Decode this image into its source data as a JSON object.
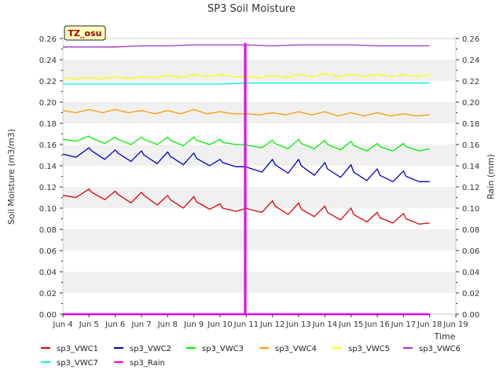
{
  "chart_data": {
    "type": "line",
    "title": "SP3 Soil Moisture",
    "xlabel": "Time",
    "ylabel": "Soil Moisture (m3/m3)",
    "y2label": "Rain (mm)",
    "site_label": "TZ_osu",
    "xlim": [
      4,
      19
    ],
    "xtick_values": [
      4,
      5,
      6,
      7,
      8,
      9,
      10,
      11,
      12,
      13,
      14,
      15,
      16,
      17,
      18,
      19
    ],
    "xtick_labels": [
      "Jun 4",
      "Jun 5",
      "Jun 6",
      "Jun 7",
      "Jun 8",
      "Jun 9",
      "Jun 10",
      "Jun 11",
      "Jun 12",
      "Jun 13",
      "Jun 14",
      "Jun 15",
      "Jun 16",
      "Jun 17",
      "Jun 18",
      "Jun 19"
    ],
    "ylim": [
      0,
      0.26
    ],
    "ytick_labels": [
      "0.00",
      "0.02",
      "0.04",
      "0.06",
      "0.08",
      "0.10",
      "0.12",
      "0.14",
      "0.16",
      "0.18",
      "0.20",
      "0.22",
      "0.24",
      "0.26"
    ],
    "y2lim": [
      0,
      0.26
    ],
    "y2tick_labels": [
      "0.00",
      "0.02",
      "0.04",
      "0.06",
      "0.08",
      "0.10",
      "0.12",
      "0.14",
      "0.16",
      "0.18",
      "0.20",
      "0.22",
      "0.24",
      "0.26"
    ],
    "grid": "horizontal bands",
    "legend_position": "bottom",
    "series": [
      {
        "name": "sp3_VWC1",
        "color": "#dd0000",
        "x": [
          4.0,
          4.5,
          5.0,
          5.1,
          5.6,
          6.0,
          6.1,
          6.6,
          7.0,
          7.1,
          7.6,
          8.0,
          8.1,
          8.6,
          9.0,
          9.1,
          9.6,
          10.0,
          10.1,
          10.6,
          11.0,
          11.1,
          11.6,
          12.0,
          12.1,
          12.6,
          13.0,
          13.1,
          13.6,
          14.0,
          14.1,
          14.6,
          15.0,
          15.1,
          15.6,
          16.0,
          16.1,
          16.6,
          17.0,
          17.1,
          17.6,
          18.0
        ],
        "values": [
          0.112,
          0.11,
          0.118,
          0.115,
          0.108,
          0.116,
          0.113,
          0.105,
          0.115,
          0.112,
          0.103,
          0.112,
          0.108,
          0.1,
          0.111,
          0.106,
          0.099,
          0.104,
          0.1,
          0.097,
          0.1,
          0.099,
          0.096,
          0.107,
          0.102,
          0.094,
          0.105,
          0.099,
          0.092,
          0.102,
          0.096,
          0.089,
          0.1,
          0.094,
          0.087,
          0.096,
          0.091,
          0.086,
          0.095,
          0.09,
          0.085,
          0.086
        ]
      },
      {
        "name": "sp3_VWC2",
        "color": "#0000cc",
        "x": [
          4.0,
          4.5,
          5.0,
          5.1,
          5.6,
          6.0,
          6.1,
          6.6,
          7.0,
          7.1,
          7.6,
          8.0,
          8.1,
          8.6,
          9.0,
          9.1,
          9.6,
          10.0,
          10.1,
          10.6,
          11.0,
          11.1,
          11.6,
          12.0,
          12.1,
          12.6,
          13.0,
          13.1,
          13.6,
          14.0,
          14.1,
          14.6,
          15.0,
          15.1,
          15.6,
          16.0,
          16.1,
          16.6,
          17.0,
          17.1,
          17.6,
          18.0
        ],
        "values": [
          0.151,
          0.148,
          0.157,
          0.154,
          0.146,
          0.155,
          0.152,
          0.144,
          0.154,
          0.15,
          0.142,
          0.153,
          0.149,
          0.141,
          0.152,
          0.147,
          0.14,
          0.146,
          0.143,
          0.139,
          0.139,
          0.138,
          0.134,
          0.146,
          0.141,
          0.133,
          0.146,
          0.14,
          0.131,
          0.143,
          0.137,
          0.129,
          0.141,
          0.134,
          0.126,
          0.137,
          0.131,
          0.125,
          0.135,
          0.13,
          0.125,
          0.125
        ]
      },
      {
        "name": "sp3_VWC3",
        "color": "#00ee00",
        "x": [
          4.0,
          4.5,
          5.0,
          5.1,
          5.6,
          6.0,
          6.1,
          6.6,
          7.0,
          7.1,
          7.6,
          8.0,
          8.1,
          8.6,
          9.0,
          9.1,
          9.6,
          10.0,
          10.1,
          10.6,
          11.0,
          11.1,
          11.6,
          12.0,
          12.1,
          12.6,
          13.0,
          13.1,
          13.6,
          14.0,
          14.1,
          14.6,
          15.0,
          15.1,
          15.6,
          16.0,
          16.1,
          16.6,
          17.0,
          17.1,
          17.6,
          18.0
        ],
        "values": [
          0.165,
          0.163,
          0.168,
          0.166,
          0.161,
          0.167,
          0.165,
          0.16,
          0.167,
          0.165,
          0.16,
          0.167,
          0.164,
          0.159,
          0.167,
          0.164,
          0.16,
          0.165,
          0.162,
          0.16,
          0.16,
          0.159,
          0.157,
          0.164,
          0.161,
          0.156,
          0.165,
          0.161,
          0.156,
          0.164,
          0.16,
          0.155,
          0.163,
          0.159,
          0.154,
          0.161,
          0.158,
          0.154,
          0.161,
          0.158,
          0.154,
          0.156
        ]
      },
      {
        "name": "sp3_VWC4",
        "color": "#ff9900",
        "x": [
          4.0,
          4.5,
          5.0,
          5.5,
          6.0,
          6.5,
          7.0,
          7.5,
          8.0,
          8.5,
          9.0,
          9.5,
          10.0,
          10.5,
          11.0,
          11.5,
          12.0,
          12.5,
          13.0,
          13.5,
          14.0,
          14.5,
          15.0,
          15.5,
          16.0,
          16.5,
          17.0,
          17.5,
          18.0
        ],
        "values": [
          0.192,
          0.19,
          0.193,
          0.19,
          0.193,
          0.19,
          0.192,
          0.189,
          0.192,
          0.189,
          0.193,
          0.189,
          0.191,
          0.189,
          0.189,
          0.188,
          0.19,
          0.188,
          0.191,
          0.188,
          0.191,
          0.187,
          0.19,
          0.187,
          0.19,
          0.187,
          0.189,
          0.187,
          0.188
        ]
      },
      {
        "name": "sp3_VWC5",
        "color": "#ffff00",
        "x": [
          4.0,
          4.5,
          5.0,
          5.5,
          6.0,
          6.5,
          7.0,
          7.5,
          8.0,
          8.5,
          9.0,
          9.5,
          10.0,
          10.5,
          11.0,
          11.5,
          12.0,
          12.5,
          13.0,
          13.5,
          14.0,
          14.5,
          15.0,
          15.5,
          16.0,
          16.5,
          17.0,
          17.5,
          18.0
        ],
        "values": [
          0.223,
          0.222,
          0.223,
          0.222,
          0.224,
          0.222,
          0.224,
          0.223,
          0.225,
          0.223,
          0.226,
          0.224,
          0.226,
          0.224,
          0.224,
          0.223,
          0.225,
          0.223,
          0.226,
          0.224,
          0.227,
          0.224,
          0.226,
          0.224,
          0.226,
          0.224,
          0.226,
          0.224,
          0.226
        ]
      },
      {
        "name": "sp3_VWC6",
        "color": "#9933cc",
        "x": [
          4.0,
          5.0,
          6.0,
          7.0,
          8.0,
          9.0,
          10.0,
          11.0,
          12.0,
          13.0,
          14.0,
          15.0,
          16.0,
          17.0,
          18.0
        ],
        "values": [
          0.252,
          0.252,
          0.252,
          0.253,
          0.253,
          0.254,
          0.254,
          0.254,
          0.253,
          0.254,
          0.254,
          0.254,
          0.253,
          0.253,
          0.253
        ]
      },
      {
        "name": "sp3_VWC7",
        "color": "#00eeee",
        "x": [
          4.0,
          5.0,
          6.0,
          7.0,
          8.0,
          9.0,
          10.0,
          11.0,
          12.0,
          13.0,
          14.0,
          15.0,
          16.0,
          17.0,
          18.0
        ],
        "values": [
          0.217,
          0.217,
          0.217,
          0.217,
          0.217,
          0.217,
          0.217,
          0.218,
          0.218,
          0.218,
          0.218,
          0.218,
          0.218,
          0.218,
          0.218
        ]
      },
      {
        "name": "sp3_Rain",
        "color": "#ee00ee",
        "axis": "right",
        "x": [
          4.0,
          10.95,
          10.95,
          10.97,
          10.97,
          18.0
        ],
        "values": [
          0.0,
          0.0,
          0.255,
          0.255,
          0.0,
          0.0
        ]
      }
    ]
  }
}
